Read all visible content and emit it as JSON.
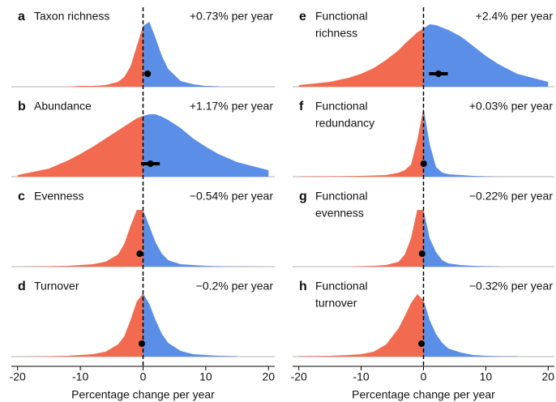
{
  "chart_data": [
    {
      "type": "density",
      "letter": "a",
      "title": [
        "Taxon richness"
      ],
      "annotation": "+0.73% per year",
      "estimate": 0.73,
      "error": 0.5,
      "x": [
        -20,
        -15,
        -12,
        -10,
        -8,
        -6,
        -4,
        -3,
        -2,
        -1,
        0,
        1,
        2,
        3,
        4,
        6,
        8,
        10,
        12,
        15,
        20
      ],
      "values": [
        null,
        null,
        0,
        0.01,
        0.01,
        0.02,
        0.06,
        0.12,
        0.25,
        0.5,
        0.75,
        0.8,
        0.6,
        0.38,
        0.22,
        0.07,
        0.03,
        0.01,
        0.005,
        null,
        null
      ],
      "ylim": [
        0,
        1
      ],
      "xlim": [
        -21,
        21
      ],
      "color_negative": "#f26b50",
      "color_positive": "#5b8ee6"
    },
    {
      "type": "density",
      "letter": "b",
      "title": [
        "Abundance"
      ],
      "annotation": "+1.17% per year",
      "estimate": 1.17,
      "error": 1.5,
      "x": [
        -20,
        -15,
        -12,
        -10,
        -8,
        -6,
        -4,
        -3,
        -2,
        -1,
        0,
        1,
        2,
        3,
        4,
        6,
        8,
        10,
        12,
        15,
        20
      ],
      "values": [
        0.02,
        0.1,
        0.2,
        0.28,
        0.37,
        0.47,
        0.57,
        0.62,
        0.67,
        0.72,
        0.75,
        0.77,
        0.77,
        0.74,
        0.7,
        0.6,
        0.47,
        0.37,
        0.28,
        0.18,
        0.08
      ],
      "ylim": [
        0,
        1
      ],
      "xlim": [
        -21,
        21
      ],
      "color_negative": "#f26b50",
      "color_positive": "#5b8ee6"
    },
    {
      "type": "density",
      "letter": "c",
      "title": [
        "Evenness"
      ],
      "annotation": "−0.54% per year",
      "estimate": -0.54,
      "error": 0.4,
      "x": [
        -20,
        -15,
        -12,
        -10,
        -8,
        -6,
        -4,
        -3,
        -2,
        -1,
        0,
        1,
        2,
        3,
        4,
        6,
        8,
        10,
        12,
        15,
        20
      ],
      "values": [
        0,
        0.005,
        0.01,
        0.02,
        0.03,
        0.06,
        0.15,
        0.28,
        0.5,
        0.7,
        0.7,
        0.5,
        0.3,
        0.16,
        0.08,
        0.03,
        0.02,
        0.01,
        0.005,
        0.003,
        0
      ],
      "ylim": [
        0,
        1
      ],
      "xlim": [
        -21,
        21
      ],
      "color_negative": "#f26b50",
      "color_positive": "#5b8ee6"
    },
    {
      "type": "density",
      "letter": "d",
      "title": [
        "Turnover"
      ],
      "annotation": "−0.2% per year",
      "estimate": -0.2,
      "error": 0.3,
      "x": [
        -20,
        -15,
        -12,
        -10,
        -8,
        -6,
        -4,
        -3,
        -2,
        -1,
        0,
        1,
        2,
        3,
        4,
        6,
        8,
        10,
        12,
        15,
        20
      ],
      "values": [
        0,
        0.005,
        0.01,
        0.02,
        0.03,
        0.06,
        0.15,
        0.25,
        0.45,
        0.68,
        0.78,
        0.65,
        0.45,
        0.28,
        0.17,
        0.07,
        0.03,
        0.02,
        0.01,
        0.005,
        null
      ],
      "ylim": [
        0,
        1
      ],
      "xlim": [
        -21,
        21
      ],
      "xticks": [
        -20,
        -10,
        0,
        10,
        20
      ],
      "xlabel": "Percentage change per year",
      "color_negative": "#f26b50",
      "color_positive": "#5b8ee6"
    },
    {
      "type": "density",
      "letter": "e",
      "title": [
        "Functional",
        "richness"
      ],
      "annotation": "+2.4% per year",
      "estimate": 2.4,
      "error": 1.5,
      "x": [
        -20,
        -15,
        -12,
        -10,
        -8,
        -6,
        -4,
        -3,
        -2,
        -1,
        0,
        1,
        2,
        3,
        4,
        6,
        8,
        10,
        12,
        15,
        20
      ],
      "values": [
        0.02,
        0.06,
        0.11,
        0.16,
        0.23,
        0.33,
        0.45,
        0.53,
        0.6,
        0.67,
        0.72,
        0.77,
        0.76,
        0.73,
        0.7,
        0.62,
        0.5,
        0.38,
        0.28,
        0.16,
        0.06
      ],
      "ylim": [
        0,
        1
      ],
      "xlim": [
        -21,
        21
      ],
      "color_negative": "#f26b50",
      "color_positive": "#5b8ee6"
    },
    {
      "type": "density",
      "letter": "f",
      "title": [
        "Functional",
        "redundancy"
      ],
      "annotation": "+0.03% per year",
      "estimate": 0.03,
      "error": 0.2,
      "x": [
        -20,
        -15,
        -12,
        -10,
        -8,
        -6,
        -4,
        -3,
        -2,
        -1,
        0,
        1,
        2,
        3,
        4,
        6,
        8,
        10,
        12,
        15,
        20
      ],
      "values": [
        0.003,
        0.005,
        0.007,
        0.01,
        0.015,
        0.02,
        0.05,
        0.08,
        0.15,
        0.45,
        0.85,
        0.4,
        0.12,
        0.05,
        0.03,
        0.02,
        0.01,
        0.005,
        0,
        null,
        null
      ],
      "ylim": [
        0,
        1
      ],
      "xlim": [
        -21,
        21
      ],
      "color_negative": "#f26b50",
      "color_positive": "#5b8ee6"
    },
    {
      "type": "density",
      "letter": "g",
      "title": [
        "Functional",
        "evenness"
      ],
      "annotation": "−0.22% per year",
      "estimate": -0.22,
      "error": 0.3,
      "x": [
        -20,
        -15,
        -12,
        -10,
        -8,
        -6,
        -4,
        -3,
        -2,
        -1,
        0,
        1,
        2,
        3,
        4,
        6,
        8,
        10,
        12,
        15,
        20
      ],
      "values": [
        null,
        null,
        0,
        0.005,
        0.01,
        0.02,
        0.06,
        0.15,
        0.35,
        0.7,
        0.7,
        0.35,
        0.18,
        0.08,
        0.04,
        0.02,
        0.01,
        0.005,
        0.002,
        null,
        null
      ],
      "ylim": [
        0,
        1
      ],
      "xlim": [
        -21,
        21
      ],
      "color_negative": "#f26b50",
      "color_positive": "#5b8ee6"
    },
    {
      "type": "density",
      "letter": "h",
      "title": [
        "Functional",
        "turnover"
      ],
      "annotation": "−0.32% per year",
      "estimate": -0.32,
      "error": 0.4,
      "x": [
        -20,
        -15,
        -12,
        -10,
        -8,
        -6,
        -4,
        -3,
        -2,
        -1,
        0,
        1,
        2,
        3,
        4,
        6,
        8,
        10,
        12,
        15,
        20
      ],
      "values": [
        0.005,
        0.01,
        0.02,
        0.03,
        0.06,
        0.15,
        0.35,
        0.5,
        0.66,
        0.77,
        0.7,
        0.45,
        0.28,
        0.17,
        0.1,
        0.05,
        0.02,
        0.01,
        0.005,
        0.003,
        null
      ],
      "ylim": [
        0,
        1
      ],
      "xlim": [
        -21,
        21
      ],
      "xticks": [
        -20,
        -10,
        0,
        10,
        20
      ],
      "xlabel": "Percentage change per year",
      "color_negative": "#f26b50",
      "color_positive": "#5b8ee6"
    }
  ]
}
